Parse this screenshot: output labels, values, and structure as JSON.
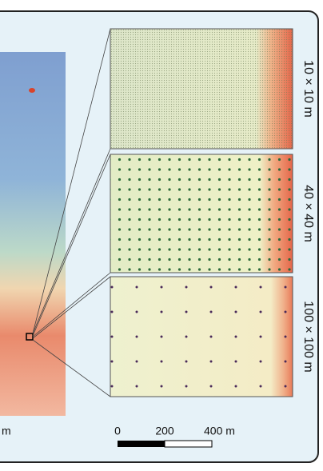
{
  "panels": [
    {
      "label": "10 × 10 m"
    },
    {
      "label": "40 × 40 m"
    },
    {
      "label": "100 × 100 m"
    }
  ],
  "scale_bar": {
    "labels": [
      "0",
      "200",
      "400 m"
    ]
  },
  "map": {
    "scale_label": "m"
  }
}
